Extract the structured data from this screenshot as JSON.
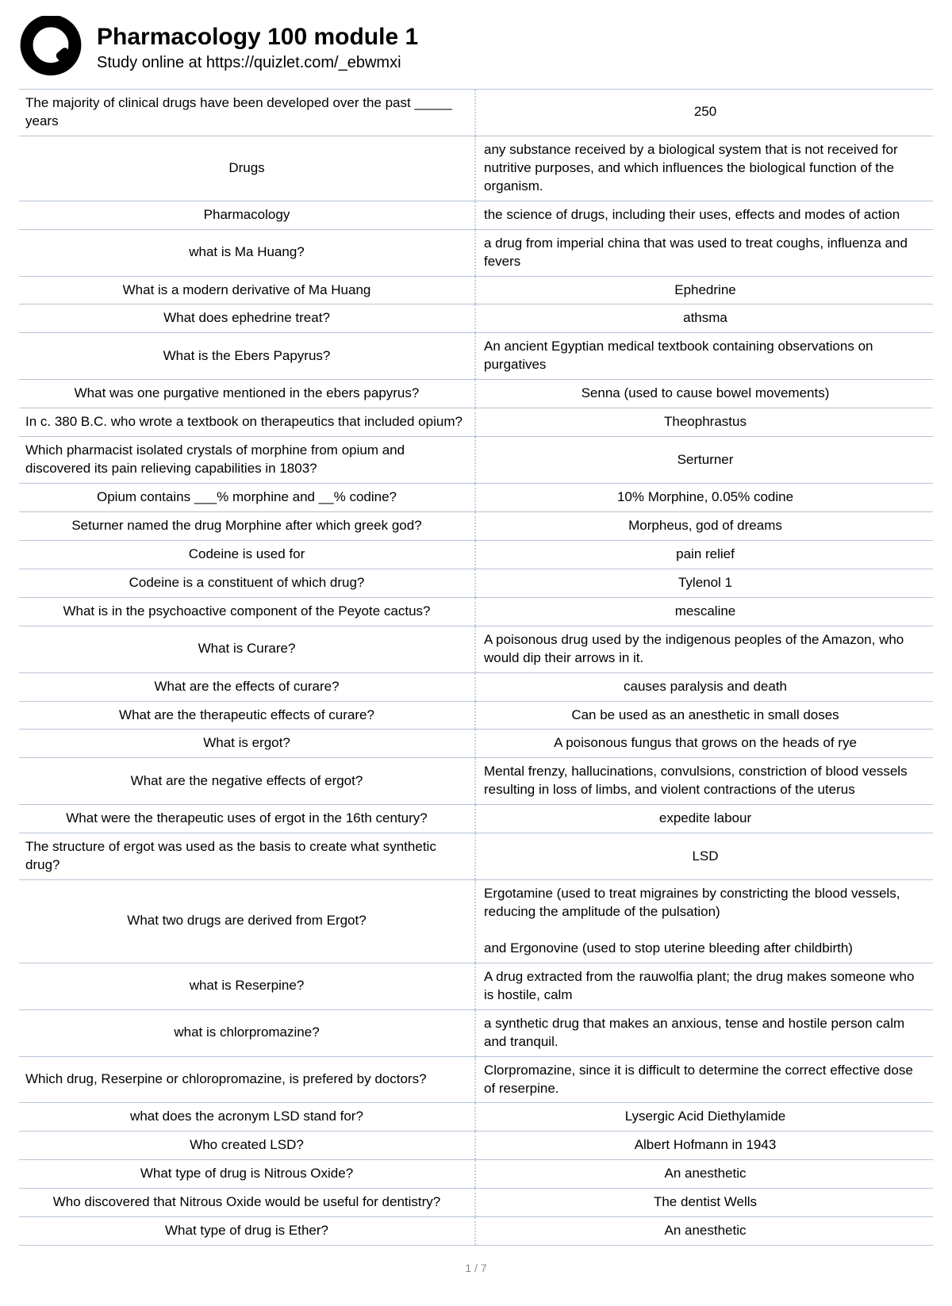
{
  "header": {
    "title": "Pharmacology 100 module 1",
    "subtitle": "Study online at https://quizlet.com/_ebwmxi"
  },
  "footer": {
    "page": "1 / 7"
  },
  "rows": [
    {
      "term": "The majority of clinical drugs have been developed over the past _____ years",
      "def": "250",
      "termLeft": true,
      "defCenter": true
    },
    {
      "term": "Drugs",
      "def": "any substance received by a biological system that is not received for nutritive purposes, and which influences the biological function of the organism."
    },
    {
      "term": "Pharmacology",
      "def": "the science of drugs, including their uses, effects and modes of action"
    },
    {
      "term": "what is Ma Huang?",
      "def": "a drug from imperial china that was used to treat coughs, influenza and fevers"
    },
    {
      "term": "What is a modern derivative of Ma Huang",
      "def": "Ephedrine",
      "defCenter": true
    },
    {
      "term": "What does ephedrine treat?",
      "def": "athsma",
      "defCenter": true
    },
    {
      "term": "What is the Ebers Papyrus?",
      "def": "An ancient Egyptian medical textbook containing observations on purgatives"
    },
    {
      "term": "What was one purgative mentioned in the ebers papyrus?",
      "def": "Senna (used to cause bowel movements)",
      "defCenter": true
    },
    {
      "term": "In c. 380 B.C. who wrote a textbook on therapeutics that included opium?",
      "def": "Theophrastus",
      "termLeft": true,
      "defCenter": true
    },
    {
      "term": "Which pharmacist isolated crystals of morphine from opium and discovered its pain relieving capabilities in 1803?",
      "def": "Serturner",
      "termLeft": true,
      "defCenter": true
    },
    {
      "term": "Opium contains ___% morphine and __% codine?",
      "def": "10% Morphine, 0.05% codine",
      "defCenter": true
    },
    {
      "term": "Seturner named the drug Morphine after which greek god?",
      "def": "Morpheus, god of dreams",
      "defCenter": true
    },
    {
      "term": "Codeine is used for",
      "def": "pain relief",
      "defCenter": true
    },
    {
      "term": "Codeine is a constituent of which drug?",
      "def": "Tylenol 1",
      "defCenter": true
    },
    {
      "term": "What is in the psychoactive component of the Peyote cactus?",
      "def": "mescaline",
      "defCenter": true
    },
    {
      "term": "What is Curare?",
      "def": "A poisonous drug used by the indigenous peoples of the Amazon, who would dip their arrows in it."
    },
    {
      "term": "What are the effects of curare?",
      "def": "causes paralysis and death",
      "defCenter": true
    },
    {
      "term": "What are the therapeutic effects of curare?",
      "def": "Can be used as an anesthetic in small doses",
      "defCenter": true
    },
    {
      "term": "What is ergot?",
      "def": "A poisonous fungus that grows on the heads of rye",
      "defCenter": true
    },
    {
      "term": "What are the negative effects of ergot?",
      "def": "Mental frenzy, hallucinations, convulsions, constriction of blood vessels resulting in loss of limbs, and violent contractions of the uterus"
    },
    {
      "term": "What were the therapeutic uses of ergot in the 16th century?",
      "def": "expedite labour",
      "defCenter": true
    },
    {
      "term": "The structure of ergot was used as the basis to create what synthetic drug?",
      "def": "LSD",
      "termLeft": true,
      "defCenter": true
    },
    {
      "term": "What two drugs are derived from Ergot?",
      "def": "Ergotamine (used to treat migraines by constricting the blood vessels, reducing the amplitude of the pulsation)\n\nand Ergonovine (used to stop uterine bleeding after childbirth)"
    },
    {
      "term": "what is Reserpine?",
      "def": "A drug extracted from the rauwolfia plant; the drug makes someone who is hostile, calm"
    },
    {
      "term": "what is chlorpromazine?",
      "def": "a synthetic drug that makes an anxious, tense and hostile person calm and tranquil."
    },
    {
      "term": "Which drug, Reserpine or chloropromazine, is prefered by doctors?",
      "def": "Clorpromazine, since it is difficult to determine the correct effective dose of reserpine.",
      "termLeft": true
    },
    {
      "term": "what does the acronym LSD stand for?",
      "def": "Lysergic Acid Diethylamide",
      "defCenter": true
    },
    {
      "term": "Who created LSD?",
      "def": "Albert Hofmann in 1943",
      "defCenter": true
    },
    {
      "term": "What type of drug is Nitrous Oxide?",
      "def": "An anesthetic",
      "defCenter": true
    },
    {
      "term": "Who discovered that Nitrous Oxide would be useful for dentistry?",
      "def": "The dentist Wells",
      "defCenter": true
    },
    {
      "term": "What type of drug is Ether?",
      "def": "An anesthetic",
      "defCenter": true
    }
  ]
}
